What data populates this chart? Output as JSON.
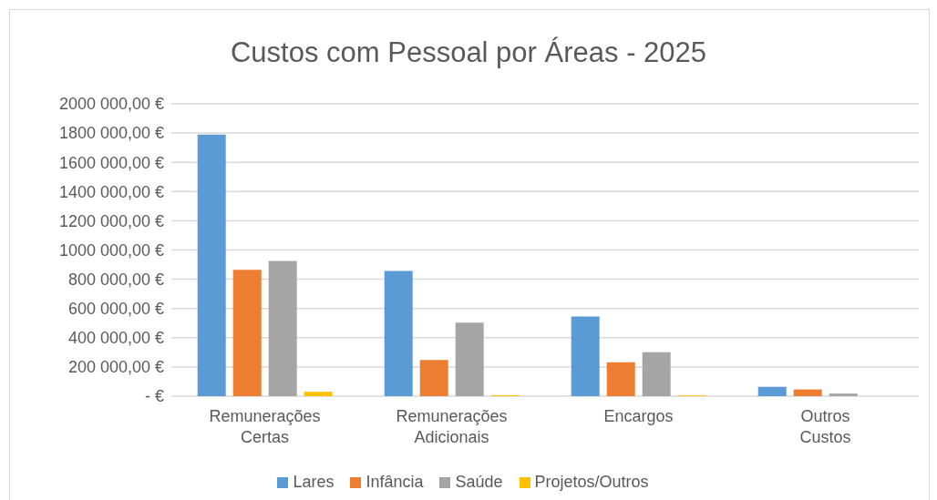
{
  "chart_data": {
    "type": "bar",
    "title": "Custos com Pessoal por Áreas - 2025",
    "categories": [
      "Remunerações Certas",
      "Remunerações Adicionais",
      "Encargos",
      "Outros Custos"
    ],
    "series": [
      {
        "name": "Lares",
        "color": "#5b9bd5",
        "values": [
          1790000,
          856000,
          545000,
          64000
        ]
      },
      {
        "name": "Infância",
        "color": "#ed7d31",
        "values": [
          865000,
          247000,
          232000,
          46000
        ]
      },
      {
        "name": "Saúde",
        "color": "#a5a5a5",
        "values": [
          925000,
          503000,
          301000,
          18000
        ]
      },
      {
        "name": "Projetos/Outros",
        "color": "#ffc000",
        "values": [
          30000,
          7000,
          5000,
          null
        ]
      }
    ],
    "ylim": [
      0,
      2000000
    ],
    "yticks": [
      {
        "value": 0,
        "label": "-  €"
      },
      {
        "value": 200000,
        "label": "200 000,00 €"
      },
      {
        "value": 400000,
        "label": "400 000,00 €"
      },
      {
        "value": 600000,
        "label": "600 000,00 €"
      },
      {
        "value": 800000,
        "label": "800 000,00 €"
      },
      {
        "value": 1000000,
        "label": "1000 000,00 €"
      },
      {
        "value": 1200000,
        "label": "1200 000,00 €"
      },
      {
        "value": 1400000,
        "label": "1400 000,00 €"
      },
      {
        "value": 1600000,
        "label": "1600 000,00 €"
      },
      {
        "value": 1800000,
        "label": "1800 000,00 €"
      },
      {
        "value": 2000000,
        "label": "2000 000,00 €"
      }
    ],
    "grid": "y",
    "legend": "bottom"
  }
}
